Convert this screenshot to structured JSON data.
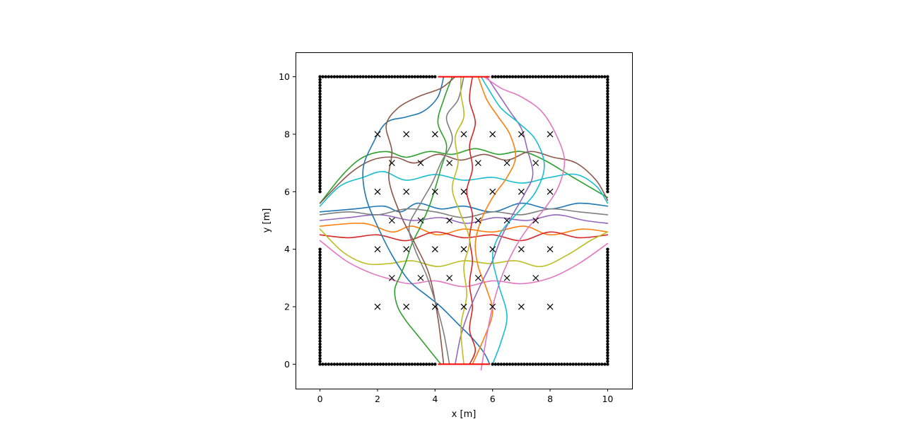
{
  "chart_data": {
    "type": "line",
    "xlabel": "x [m]",
    "ylabel": "y [m]",
    "xlim": [
      -0.85,
      10.85
    ],
    "ylim": [
      -0.85,
      10.85
    ],
    "x_ticks": [
      0,
      2,
      4,
      6,
      8,
      10
    ],
    "y_ticks": [
      0,
      2,
      4,
      6,
      8,
      10
    ],
    "x_tick_labels": [
      "0",
      "2",
      "4",
      "6",
      "8",
      "10"
    ],
    "y_tick_labels": [
      "0",
      "2",
      "4",
      "6",
      "8",
      "10"
    ],
    "grid": false,
    "legend": "none",
    "colors": {
      "walls": "#000000",
      "obstacles": "#000000",
      "exits": "#ff0000",
      "series_palette": [
        "#1f77b4",
        "#ff7f0e",
        "#2ca02c",
        "#d62728",
        "#9467bd",
        "#8c564b",
        "#e377c2",
        "#7f7f7f",
        "#bcbd22",
        "#17becf"
      ]
    },
    "walls": [
      {
        "x1": 0,
        "y1": 0,
        "x2": 4,
        "y2": 0
      },
      {
        "x1": 6,
        "y1": 0,
        "x2": 10,
        "y2": 0
      },
      {
        "x1": 0,
        "y1": 10,
        "x2": 4,
        "y2": 10
      },
      {
        "x1": 6,
        "y1": 10,
        "x2": 10,
        "y2": 10
      },
      {
        "x1": 0,
        "y1": 0,
        "x2": 0,
        "y2": 4
      },
      {
        "x1": 0,
        "y1": 6,
        "x2": 0,
        "y2": 10
      },
      {
        "x1": 10,
        "y1": 0,
        "x2": 10,
        "y2": 4
      },
      {
        "x1": 10,
        "y1": 6,
        "x2": 10,
        "y2": 10
      }
    ],
    "exits": [
      {
        "x1": 4.1,
        "y1": 0,
        "x2": 5.9,
        "y2": 0
      },
      {
        "x1": 4.1,
        "y1": 10,
        "x2": 5.9,
        "y2": 10
      }
    ],
    "obstacles": [
      [
        2,
        8
      ],
      [
        3,
        8
      ],
      [
        4,
        8
      ],
      [
        5,
        8
      ],
      [
        6,
        8
      ],
      [
        7,
        8
      ],
      [
        8,
        8
      ],
      [
        2.5,
        7
      ],
      [
        3.5,
        7
      ],
      [
        4.5,
        7
      ],
      [
        5.5,
        7
      ],
      [
        6.5,
        7
      ],
      [
        7.5,
        7
      ],
      [
        2,
        6
      ],
      [
        3,
        6
      ],
      [
        4,
        6
      ],
      [
        5,
        6
      ],
      [
        6,
        6
      ],
      [
        7,
        6
      ],
      [
        8,
        6
      ],
      [
        2.5,
        5
      ],
      [
        3.5,
        5
      ],
      [
        4.5,
        5
      ],
      [
        5.5,
        5
      ],
      [
        6.5,
        5
      ],
      [
        7.5,
        5
      ],
      [
        2,
        4
      ],
      [
        3,
        4
      ],
      [
        4,
        4
      ],
      [
        5,
        4
      ],
      [
        6,
        4
      ],
      [
        7,
        4
      ],
      [
        8,
        4
      ],
      [
        2.5,
        3
      ],
      [
        3.5,
        3
      ],
      [
        4.5,
        3
      ],
      [
        5.5,
        3
      ],
      [
        6.5,
        3
      ],
      [
        7.5,
        3
      ],
      [
        2,
        2
      ],
      [
        3,
        2
      ],
      [
        4,
        2
      ],
      [
        5,
        2
      ],
      [
        6,
        2
      ],
      [
        7,
        2
      ],
      [
        8,
        2
      ]
    ],
    "series": [
      {
        "color": "#1f77b4",
        "x": [
          0,
          1.2,
          2.2,
          2.8,
          3.4,
          4.2,
          5.0,
          6.0,
          7.0,
          8.0,
          9.0,
          10
        ],
        "y": [
          5.3,
          5.4,
          5.5,
          5.3,
          5.6,
          5.4,
          5.5,
          5.3,
          5.6,
          5.4,
          5.6,
          5.5
        ]
      },
      {
        "color": "#ff7f0e",
        "x": [
          0,
          1.5,
          2.5,
          3.2,
          4.1,
          5.0,
          6.0,
          7.1,
          8.0,
          9.1,
          10
        ],
        "y": [
          4.8,
          4.9,
          4.6,
          4.8,
          4.5,
          4.7,
          4.6,
          4.8,
          4.5,
          4.7,
          4.6
        ]
      },
      {
        "color": "#2ca02c",
        "x": [
          0,
          0.8,
          1.5,
          2.3,
          3.0,
          3.8,
          4.6,
          5.4,
          6.2,
          7.0,
          7.8,
          8.8,
          10
        ],
        "y": [
          5.6,
          6.6,
          7.2,
          7.4,
          7.2,
          7.4,
          7.3,
          7.5,
          7.3,
          7.4,
          7.1,
          6.5,
          5.8
        ]
      },
      {
        "color": "#d62728",
        "x": [
          0,
          1.0,
          2.0,
          3.0,
          4.0,
          5.0,
          6.0,
          7.0,
          8.0,
          9.0,
          10
        ],
        "y": [
          4.5,
          4.4,
          4.5,
          4.3,
          4.6,
          4.4,
          4.5,
          4.3,
          4.6,
          4.4,
          4.5
        ]
      },
      {
        "color": "#9467bd",
        "x": [
          0,
          1.0,
          2.1,
          3.2,
          4.2,
          5.1,
          6.1,
          7.2,
          8.2,
          9.2,
          10
        ],
        "y": [
          5.0,
          5.1,
          5.2,
          5.0,
          5.1,
          4.9,
          5.1,
          5.0,
          5.2,
          5.0,
          4.9
        ]
      },
      {
        "color": "#8c564b",
        "x": [
          0,
          1.0,
          1.8,
          2.6,
          3.3,
          4.1,
          4.9,
          5.7,
          6.5,
          7.3,
          8.1,
          8.9,
          9.6,
          10
        ],
        "y": [
          5.6,
          6.6,
          7.1,
          7.2,
          7.0,
          7.3,
          7.1,
          7.3,
          7.1,
          7.4,
          7.2,
          7.0,
          6.4,
          5.7
        ]
      },
      {
        "color": "#e377c2",
        "x": [
          0,
          0.9,
          1.7,
          2.3,
          3.1,
          4.0,
          5.0,
          6.0,
          7.0,
          8.0,
          9.0,
          10
        ],
        "y": [
          4.3,
          3.6,
          3.2,
          3.0,
          2.8,
          2.9,
          2.7,
          2.9,
          2.8,
          3.0,
          3.5,
          4.2
        ]
      },
      {
        "color": "#7f7f7f",
        "x": [
          0,
          1.0,
          2.0,
          3.0,
          4.0,
          5.0,
          6.0,
          7.0,
          8.0,
          9.0,
          10
        ],
        "y": [
          5.2,
          5.3,
          5.2,
          5.4,
          5.3,
          5.1,
          5.3,
          5.2,
          5.4,
          5.3,
          5.2
        ]
      },
      {
        "color": "#bcbd22",
        "x": [
          0,
          0.8,
          1.6,
          2.4,
          3.2,
          4.1,
          5.0,
          5.9,
          6.8,
          7.7,
          8.6,
          9.4,
          10
        ],
        "y": [
          4.7,
          3.9,
          3.5,
          3.5,
          3.6,
          3.4,
          3.6,
          3.5,
          3.6,
          3.4,
          3.8,
          4.3,
          4.6
        ]
      },
      {
        "color": "#17becf",
        "x": [
          0,
          0.7,
          1.5,
          2.2,
          3.0,
          4.0,
          5.0,
          6.0,
          7.0,
          8.0,
          8.9,
          9.6,
          10
        ],
        "y": [
          5.5,
          6.2,
          6.5,
          6.7,
          6.4,
          6.6,
          6.4,
          6.5,
          6.3,
          6.5,
          6.6,
          6.2,
          5.6
        ]
      },
      {
        "color": "#1f77b4",
        "x": [
          4.3,
          4.1,
          3.6,
          3.0,
          2.3,
          1.8,
          1.5,
          1.6,
          2.0,
          2.5,
          3.1,
          3.7,
          4.2,
          4.8,
          5.3,
          5.7,
          5.9
        ],
        "y": [
          10,
          9.3,
          8.8,
          8.6,
          8.4,
          7.6,
          6.8,
          5.8,
          4.8,
          3.8,
          2.9,
          2.4,
          2.0,
          1.4,
          0.9,
          0.4,
          0
        ]
      },
      {
        "color": "#ff7f0e",
        "x": [
          5.5,
          5.8,
          6.2,
          6.6,
          6.8,
          6.5,
          6.0,
          5.6,
          5.4,
          5.5,
          5.8,
          6.0,
          5.7,
          5.3
        ],
        "y": [
          10,
          9.2,
          8.6,
          8.0,
          7.2,
          6.5,
          5.8,
          5.0,
          4.2,
          3.4,
          2.6,
          1.8,
          0.9,
          0
        ]
      },
      {
        "color": "#2ca02c",
        "x": [
          4.6,
          4.3,
          4.1,
          4.4,
          4.2,
          4.0,
          3.8,
          3.5,
          3.2,
          3.0,
          2.8,
          2.6,
          2.7,
          3.0,
          3.4,
          3.8,
          4.2
        ],
        "y": [
          10,
          9.2,
          8.4,
          7.6,
          6.8,
          6.1,
          5.5,
          4.8,
          4.2,
          3.6,
          3.1,
          2.6,
          2.0,
          1.5,
          1.0,
          0.5,
          0
        ]
      },
      {
        "color": "#d62728",
        "x": [
          5.3,
          5.2,
          5.4,
          5.2,
          5.3,
          5.1,
          5.3,
          5.2,
          5.3,
          5.2,
          5.3,
          5.2,
          5.4,
          5.2
        ],
        "y": [
          10,
          9.2,
          8.4,
          7.6,
          6.8,
          6.0,
          5.2,
          4.4,
          3.6,
          2.8,
          2.0,
          1.2,
          0.5,
          0
        ]
      },
      {
        "color": "#9467bd",
        "x": [
          5.8,
          6.2,
          6.6,
          7.0,
          7.2,
          7.4,
          7.1,
          6.7,
          6.3,
          6.0,
          5.6,
          5.2,
          4.9,
          4.7
        ],
        "y": [
          10,
          9.4,
          8.8,
          8.2,
          7.5,
          6.6,
          5.9,
          5.2,
          4.4,
          3.6,
          2.8,
          1.9,
          1.0,
          0
        ]
      },
      {
        "color": "#8c564b",
        "x": [
          4.7,
          4.2,
          3.4,
          2.7,
          2.3,
          2.5,
          2.4,
          2.8,
          3.3,
          3.8,
          4.1,
          4.3
        ],
        "y": [
          10,
          9.6,
          9.3,
          8.9,
          8.3,
          7.4,
          6.4,
          5.2,
          4.2,
          3.1,
          1.6,
          0
        ]
      },
      {
        "color": "#e377c2",
        "x": [
          5.7,
          6.3,
          7.0,
          7.7,
          8.2,
          8.5,
          8.3,
          7.8,
          7.2,
          6.7,
          6.3,
          6.0,
          5.8,
          5.6
        ],
        "y": [
          10,
          9.6,
          9.3,
          8.8,
          8.0,
          7.1,
          6.2,
          5.4,
          4.7,
          3.9,
          3.0,
          2.0,
          1.0,
          -0.2
        ]
      },
      {
        "color": "#7f7f7f",
        "x": [
          5.0,
          4.8,
          4.4,
          4.6,
          4.2,
          3.9,
          3.5,
          3.1,
          3.3,
          3.7,
          4.0,
          4.3,
          4.5
        ],
        "y": [
          10,
          9.2,
          8.6,
          7.8,
          7.0,
          6.3,
          5.6,
          4.8,
          4.0,
          3.1,
          2.2,
          1.1,
          0
        ]
      },
      {
        "color": "#bcbd22",
        "x": [
          4.9,
          4.9,
          5.0,
          4.7,
          4.8,
          4.6,
          4.9,
          5.2,
          5.0,
          5.1,
          4.9,
          5.0
        ],
        "y": [
          10,
          9.4,
          8.6,
          7.9,
          7.0,
          6.1,
          5.2,
          4.3,
          3.4,
          2.4,
          1.3,
          0
        ]
      },
      {
        "color": "#17becf",
        "x": [
          5.6,
          5.9,
          6.3,
          6.9,
          7.5,
          7.8,
          7.5,
          6.9,
          6.3,
          6.0,
          6.2,
          6.5,
          6.3,
          6.0
        ],
        "y": [
          10,
          9.5,
          8.9,
          8.4,
          7.8,
          6.9,
          6.0,
          5.3,
          4.6,
          3.8,
          2.8,
          1.7,
          0.8,
          0
        ]
      }
    ]
  }
}
